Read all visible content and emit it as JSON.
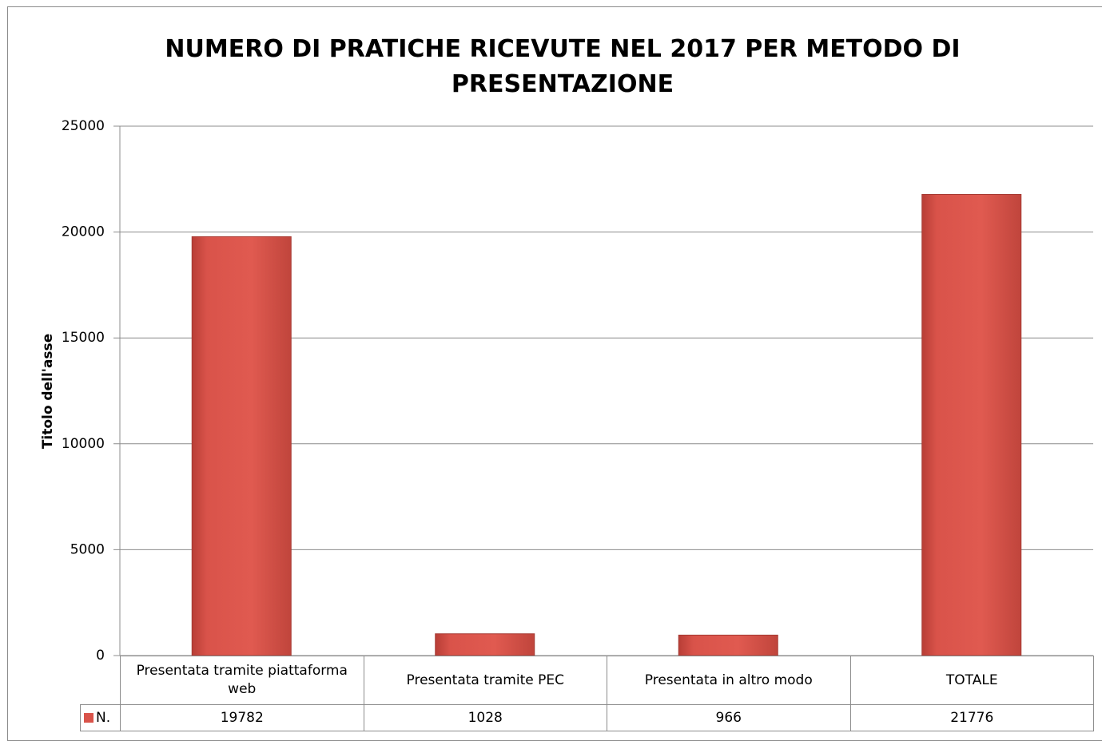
{
  "chart_data": {
    "type": "bar",
    "title": "NUMERO DI PRATICHE RICEVUTE NEL 2017 PER METODO DI PRESENTAZIONE",
    "y_label": "Titolo dell'asse",
    "categories": [
      "Presentata tramite piattaforma web",
      "Presentata tramite PEC",
      "Presentata in altro modo",
      "TOTALE"
    ],
    "series": [
      {
        "name": "N.",
        "color": "#d9534a",
        "values": [
          19782,
          1028,
          966,
          21776
        ]
      }
    ],
    "ylim": [
      0,
      25000
    ],
    "yticks": [
      0,
      5000,
      10000,
      15000,
      20000,
      25000
    ],
    "grid": true
  }
}
